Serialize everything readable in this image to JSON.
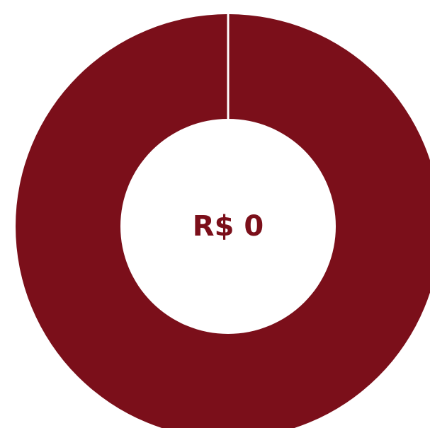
{
  "chart_data": {
    "type": "pie",
    "donut": true,
    "slices": [
      {
        "value": 1
      }
    ],
    "center_label": "R$ 0",
    "slice_color": "#7b0f1a",
    "separator_color": "#ffffff",
    "label_color": "#7b0f1a"
  }
}
